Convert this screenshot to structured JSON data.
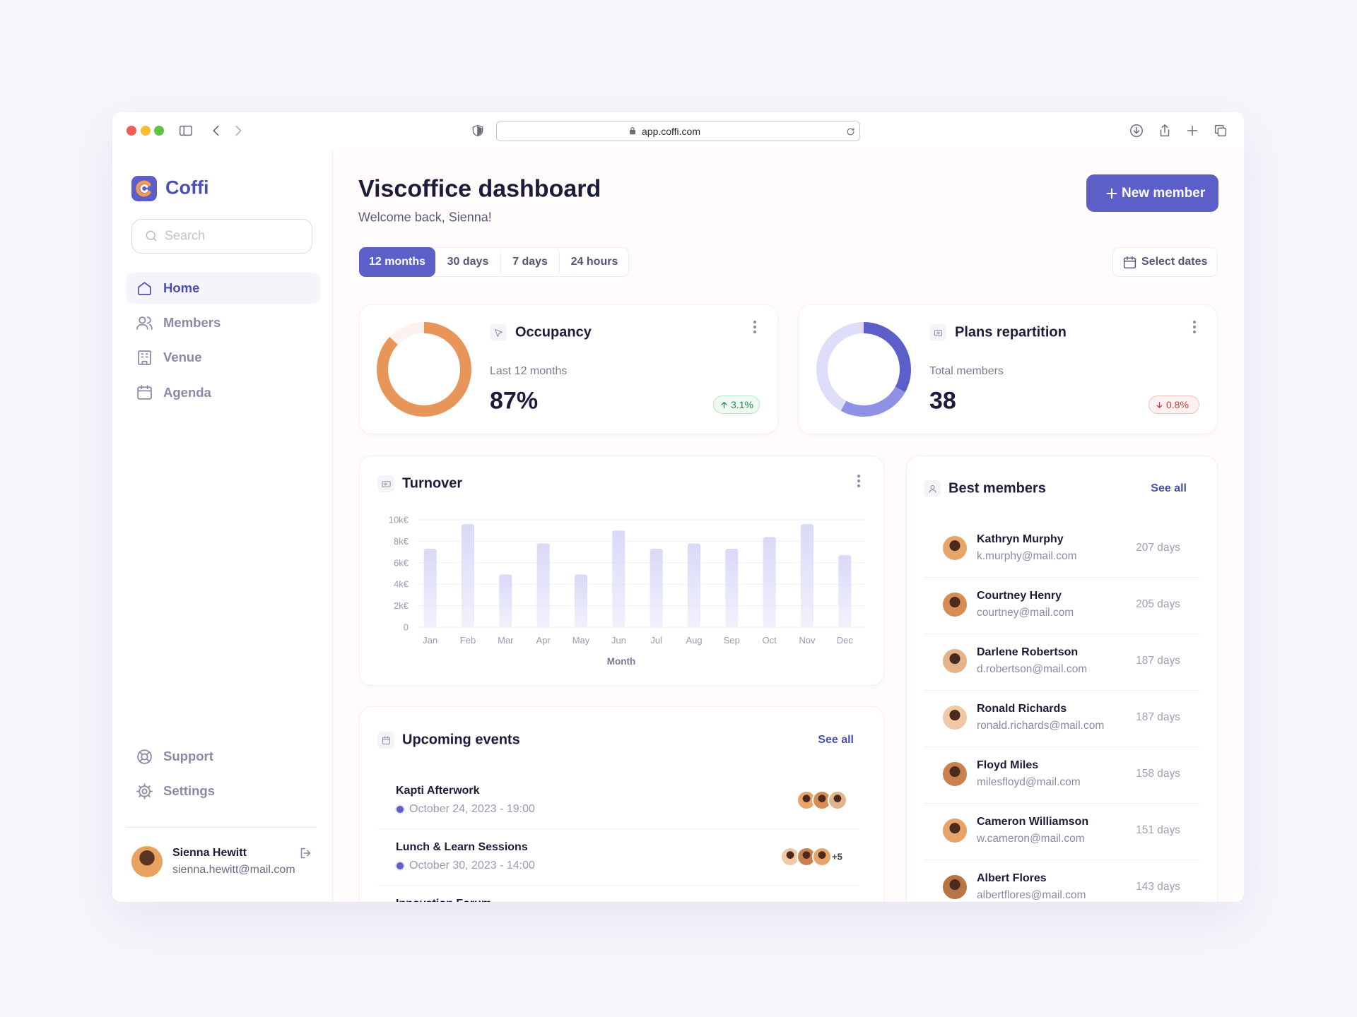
{
  "browser": {
    "url": "app.coffi.com"
  },
  "sidebar": {
    "brand": "Coffi",
    "search_placeholder": "Search",
    "nav": [
      "Home",
      "Members",
      "Venue",
      "Agenda"
    ],
    "footer_nav": [
      "Support",
      "Settings"
    ],
    "user": {
      "name": "Sienna Hewitt",
      "email": "sienna.hewitt@mail.com"
    }
  },
  "header": {
    "title": "Viscoffice dashboard",
    "subtitle": "Welcome back, Sienna!",
    "button": "New member",
    "tabs": [
      "12 months",
      "30 days",
      "7 days",
      "24 hours"
    ],
    "date_button": "Select dates"
  },
  "occupancy": {
    "title": "Occupancy",
    "caption": "Last 12 months",
    "value": 87,
    "value_label": "87%",
    "change": "3.1%",
    "color": "#e8955a"
  },
  "plans": {
    "title": "Plans repartition",
    "caption": "Total members",
    "value": 38,
    "change": "0.8%",
    "segments": [
      33,
      25,
      42
    ],
    "colors": [
      "#5b5fc7",
      "#8e91e6",
      "#dedefa"
    ]
  },
  "chart_data": {
    "type": "bar",
    "title": "Turnover",
    "x_label": "Month",
    "categories": [
      "Jan",
      "Feb",
      "Mar",
      "Apr",
      "May",
      "Jun",
      "Jul",
      "Aug",
      "Sep",
      "Oct",
      "Nov",
      "Dec"
    ],
    "values": [
      7300,
      9600,
      4900,
      7800,
      4900,
      9000,
      7300,
      7800,
      7300,
      8400,
      9600,
      6700
    ],
    "color": "#d9d9f8",
    "ylim": [
      0,
      10000
    ],
    "yticks": [
      0,
      {
        "value": 2000,
        "label": "2k€"
      },
      {
        "value": 4000,
        "label": "4k€"
      },
      {
        "value": 6000,
        "label": "6k€"
      },
      {
        "value": 8000,
        "label": "8k€"
      },
      {
        "value": 10000,
        "label": "10k€"
      }
    ],
    "grid": true
  },
  "best_members": {
    "title": "Best members",
    "link": "See all",
    "members": [
      {
        "name": "Kathryn Murphy",
        "email": "k.murphy@mail.com",
        "days": "207 days"
      },
      {
        "name": "Courtney Henry",
        "email": "courtney@mail.com",
        "days": "205 days"
      },
      {
        "name": "Darlene Robertson",
        "email": "d.robertson@mail.com",
        "days": "187 days"
      },
      {
        "name": "Ronald Richards",
        "email": "ronald.richards@mail.com",
        "days": "187 days"
      },
      {
        "name": "Floyd Miles",
        "email": "milesfloyd@mail.com",
        "days": "158 days"
      },
      {
        "name": "Cameron Williamson",
        "email": "w.cameron@mail.com",
        "days": "151 days"
      },
      {
        "name": "Albert Flores",
        "email": "albertflores@mail.com",
        "days": "143 days"
      }
    ]
  },
  "events": {
    "title": "Upcoming events",
    "link": "See all",
    "items": [
      {
        "name": "Kapti Afterwork",
        "date": "October 24, 2023 - 19:00"
      },
      {
        "name": "Lunch & Learn Sessions",
        "date": "October 30, 2023 - 14:00",
        "extra": "+5"
      },
      {
        "name": "Innovation Forum"
      }
    ]
  }
}
